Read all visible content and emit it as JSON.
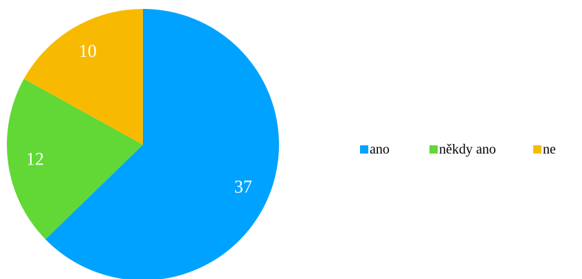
{
  "chart_data": {
    "type": "pie",
    "categories": [
      "ano",
      "někdy ano",
      "ne"
    ],
    "values": [
      37,
      12,
      10
    ],
    "colors": [
      "#00A2FF",
      "#61D836",
      "#F8BA00"
    ],
    "slice_labels": [
      "37",
      "12",
      "10"
    ],
    "start_angle": "12 o'clock",
    "direction": "clockwise",
    "legend_position": "right"
  }
}
